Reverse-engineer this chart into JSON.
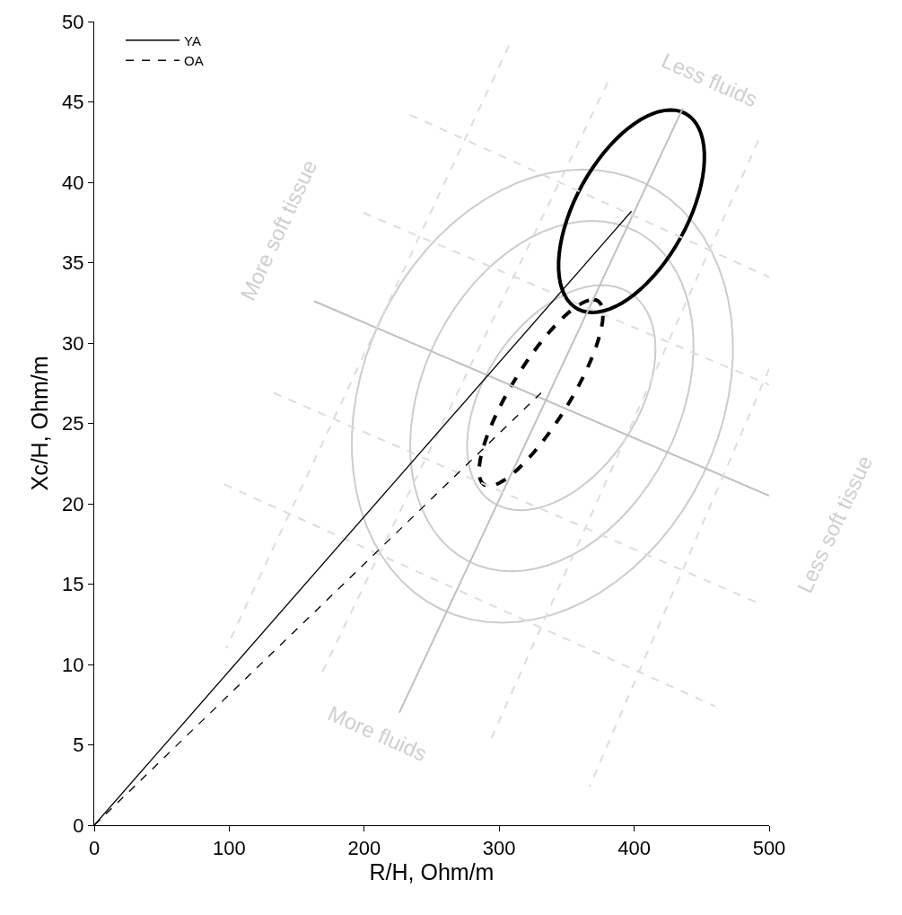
{
  "chart_data": {
    "type": "line",
    "xlabel": "R/H, Ohm/m",
    "ylabel": "Xc/H, Ohm/m",
    "xlim": [
      0,
      500
    ],
    "xticks": [
      0,
      100,
      200,
      300,
      400,
      500
    ],
    "ylim": [
      0,
      50
    ],
    "yticks": [
      0,
      5,
      10,
      15,
      20,
      25,
      30,
      35,
      40,
      45,
      50
    ],
    "grid": false,
    "legend": "top left",
    "marker": "none",
    "annotations": [
      "Less fluids",
      "More fluids",
      "More soft tissue",
      "Less soft tissue"
    ],
    "series": [
      {
        "color": "#c0c0c0",
        "line_style": "solid",
        "x": [
          436,
          226
        ],
        "values": [
          44.6,
          7.0
        ]
      },
      {
        "color": "#c0c0c0",
        "line_style": "solid",
        "x": [
          163,
          500
        ],
        "values": [
          32.6,
          20.5
        ]
      },
      {
        "color": "#dddddd",
        "line_style": "dashed",
        "x": [
          307.2,
          97.7
        ],
        "values": [
          48.5,
          11.0
        ]
      },
      {
        "color": "#dddddd",
        "line_style": "dashed",
        "x": [
          380.3,
          167.6
        ],
        "values": [
          46.2,
          9.3
        ]
      },
      {
        "color": "#dddddd",
        "line_style": "dashed",
        "x": [
          492,
          292.6
        ],
        "values": [
          42.6,
          5.1
        ]
      },
      {
        "color": "#dddddd",
        "line_style": "dashed",
        "x": [
          500,
          367
        ],
        "values": [
          28.4,
          2.4
        ]
      },
      {
        "color": "#dddddd",
        "line_style": "dashed",
        "x": [
          234,
          500
        ],
        "values": [
          44.2,
          34.1
        ]
      },
      {
        "color": "#dddddd",
        "line_style": "dashed",
        "x": [
          199.5,
          500
        ],
        "values": [
          38.1,
          27.4
        ]
      },
      {
        "color": "#dddddd",
        "line_style": "dashed",
        "x": [
          133,
          495.3
        ],
        "values": [
          26.9,
          13.7
        ]
      },
      {
        "color": "#dddddd",
        "line_style": "dashed",
        "x": [
          96.4,
          460
        ],
        "values": [
          21.2,
          7.4
        ]
      },
      {
        "name": "YA",
        "color": "#000000",
        "line_style": "solid",
        "x": [
          0,
          398
        ],
        "values": [
          0,
          38.2
        ]
      },
      {
        "name": "OA",
        "color": "#000000",
        "line_style": "dashed",
        "x": [
          0,
          331
        ],
        "values": [
          0,
          26.9
        ]
      }
    ]
  }
}
